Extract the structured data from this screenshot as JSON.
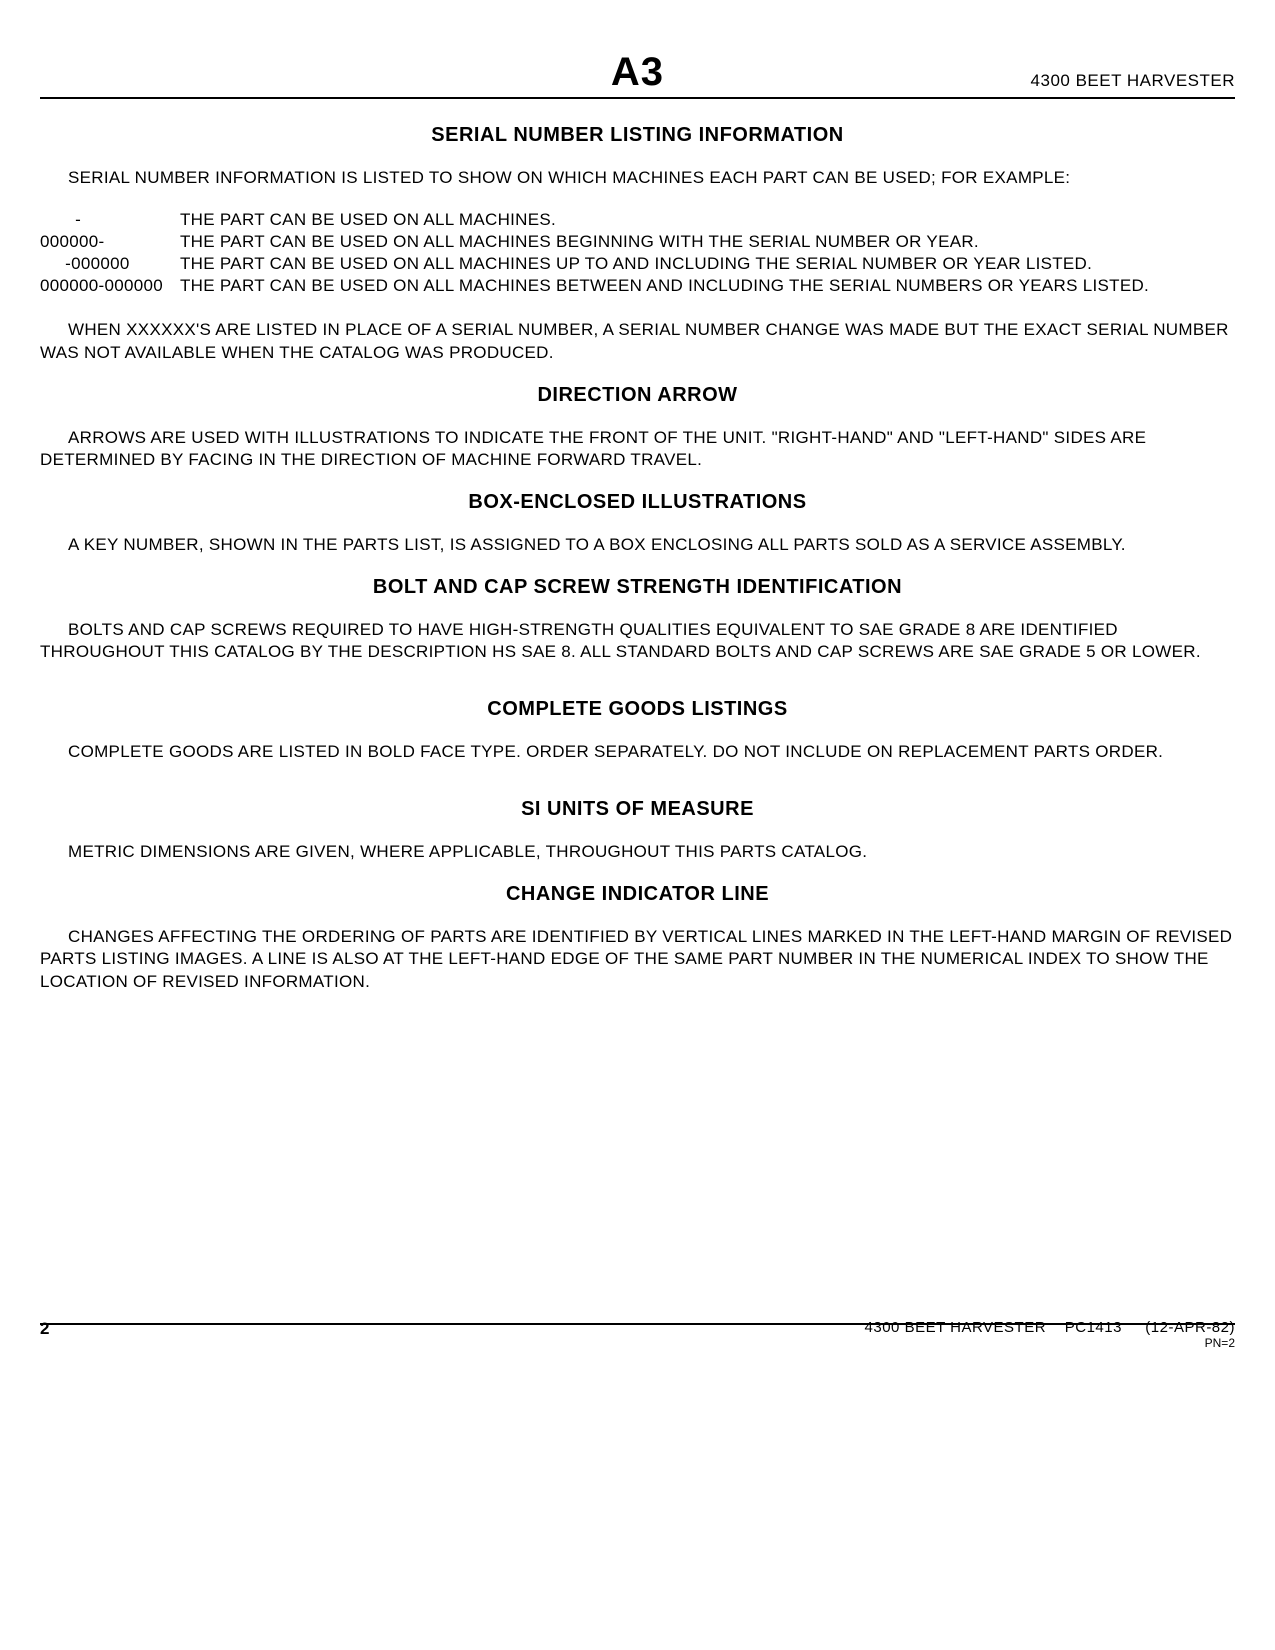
{
  "header": {
    "page_code": "A3",
    "product": "4300 BEET HARVESTER"
  },
  "sections": [
    {
      "heading": "SERIAL NUMBER LISTING INFORMATION",
      "intro": "SERIAL NUMBER INFORMATION IS LISTED TO SHOW ON WHICH MACHINES EACH PART CAN BE USED; FOR EXAMPLE:",
      "definitions": [
        {
          "key": "       -",
          "val": "THE PART CAN BE USED ON ALL MACHINES."
        },
        {
          "key": "000000-",
          "val": "THE PART CAN BE USED ON ALL MACHINES BEGINNING WITH THE SERIAL NUMBER OR YEAR."
        },
        {
          "key": "     -000000",
          "val": "THE PART CAN BE USED ON ALL MACHINES UP TO AND INCLUDING THE SERIAL NUMBER OR YEAR LISTED."
        },
        {
          "key": "000000-000000",
          "val": "THE PART CAN BE USED ON ALL MACHINES BETWEEN AND INCLUDING THE SERIAL NUMBERS OR YEARS LISTED."
        }
      ],
      "trailer": "WHEN XXXXXX'S ARE LISTED IN PLACE OF A SERIAL NUMBER, A SERIAL NUMBER CHANGE WAS MADE BUT THE EXACT SERIAL NUMBER WAS NOT AVAILABLE WHEN THE CATALOG WAS PRODUCED."
    },
    {
      "heading": "DIRECTION ARROW",
      "body": "ARROWS ARE USED WITH ILLUSTRATIONS TO INDICATE THE FRONT OF THE UNIT.  \"RIGHT-HAND\" AND \"LEFT-HAND\" SIDES ARE DETERMINED BY FACING IN THE DIRECTION OF MACHINE FORWARD TRAVEL."
    },
    {
      "heading": "BOX-ENCLOSED ILLUSTRATIONS",
      "body": "A KEY NUMBER, SHOWN IN THE PARTS LIST, IS ASSIGNED TO A BOX ENCLOSING ALL PARTS SOLD AS A SERVICE ASSEMBLY."
    },
    {
      "heading": "BOLT AND CAP SCREW STRENGTH IDENTIFICATION",
      "body": "BOLTS AND CAP SCREWS REQUIRED TO HAVE HIGH-STRENGTH QUALITIES EQUIVALENT TO SAE GRADE 8 ARE IDENTIFIED THROUGHOUT THIS CATALOG BY THE DESCRIPTION HS SAE 8.  ALL STANDARD BOLTS AND CAP SCREWS ARE SAE GRADE 5 OR LOWER."
    },
    {
      "heading": "COMPLETE GOODS LISTINGS",
      "body": "COMPLETE GOODS ARE LISTED IN BOLD FACE TYPE.  ORDER SEPARATELY.  DO NOT INCLUDE ON REPLACEMENT PARTS ORDER.",
      "extra_gap": true
    },
    {
      "heading": "SI UNITS OF MEASURE",
      "body": "METRIC DIMENSIONS ARE GIVEN, WHERE APPLICABLE, THROUGHOUT THIS PARTS CATALOG.",
      "extra_gap": true
    },
    {
      "heading": "CHANGE INDICATOR LINE",
      "body": "CHANGES AFFECTING THE ORDERING OF PARTS ARE IDENTIFIED BY VERTICAL LINES MARKED IN THE LEFT-HAND MARGIN OF REVISED PARTS LISTING IMAGES.  A LINE IS ALSO AT THE LEFT-HAND EDGE OF THE SAME PART NUMBER IN THE NUMERICAL INDEX TO SHOW THE LOCATION OF REVISED INFORMATION."
    }
  ],
  "footer": {
    "page_number": "2",
    "product": "4300 BEET HARVESTER",
    "catalog": "PC1413",
    "date": "(12-APR-82)",
    "pn": "PN=2"
  }
}
